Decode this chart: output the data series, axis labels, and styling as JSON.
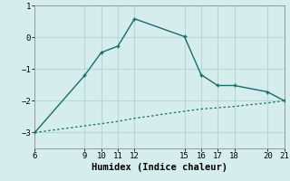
{
  "xlabel": "Humidex (Indice chaleur)",
  "ylabel": "",
  "bg_color": "#d5eeed",
  "grid_color": "#b8d8d5",
  "line_color": "#1a6b6b",
  "line1_x": [
    6,
    9,
    10,
    11,
    12,
    15,
    16,
    17,
    18,
    20,
    21
  ],
  "line1_y": [
    -3.0,
    -1.2,
    -0.48,
    -0.28,
    0.58,
    0.02,
    -1.18,
    -1.52,
    -1.52,
    -1.72,
    -2.0
  ],
  "line2_x": [
    6,
    7,
    8,
    9,
    10,
    11,
    12,
    13,
    14,
    15,
    16,
    17,
    18,
    19,
    20,
    21
  ],
  "line2_y": [
    -3.0,
    -2.93,
    -2.86,
    -2.79,
    -2.72,
    -2.65,
    -2.55,
    -2.48,
    -2.4,
    -2.33,
    -2.26,
    -2.22,
    -2.18,
    -2.12,
    -2.07,
    -2.0
  ],
  "xlim": [
    6,
    21
  ],
  "ylim": [
    -3.5,
    1.0
  ],
  "xticks": [
    6,
    9,
    10,
    11,
    12,
    15,
    16,
    17,
    18,
    20,
    21
  ],
  "yticks": [
    -3,
    -2,
    -1,
    0,
    1
  ],
  "tick_fontsize": 6.5,
  "label_fontsize": 7.5,
  "marker": "+"
}
